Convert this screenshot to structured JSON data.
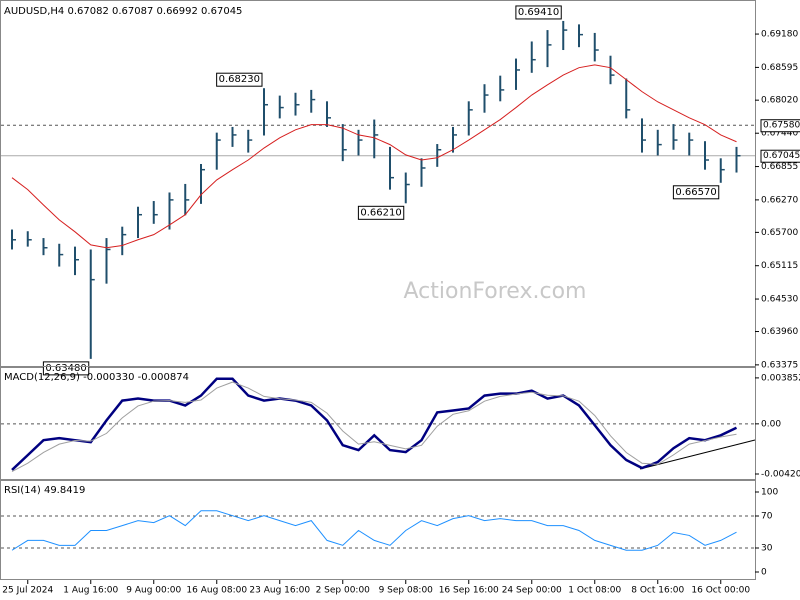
{
  "chart_data": [
    {
      "type": "ohlc",
      "title": "AUDUSD,H4 0.67082 0.67087 0.66992 0.67045",
      "watermark": "ActionForex.com",
      "color": "#1f4e6b",
      "high": [
        0.6575,
        0.6572,
        0.656,
        0.655,
        0.6545,
        0.654,
        0.656,
        0.658,
        0.6615,
        0.6625,
        0.664,
        0.6655,
        0.669,
        0.6745,
        0.6755,
        0.675,
        0.6823,
        0.681,
        0.6815,
        0.682,
        0.68,
        0.676,
        0.675,
        0.6768,
        0.672,
        0.6675,
        0.67,
        0.6725,
        0.6755,
        0.68,
        0.683,
        0.6845,
        0.6875,
        0.6905,
        0.6925,
        0.6941,
        0.6935,
        0.692,
        0.688,
        0.684,
        0.677,
        0.675,
        0.676,
        0.6745,
        0.673,
        0.67,
        0.672
      ],
      "low": [
        0.654,
        0.6545,
        0.653,
        0.651,
        0.6495,
        0.6348,
        0.648,
        0.653,
        0.656,
        0.6585,
        0.6575,
        0.66,
        0.662,
        0.668,
        0.672,
        0.671,
        0.674,
        0.677,
        0.6775,
        0.678,
        0.6755,
        0.6695,
        0.6705,
        0.67,
        0.6645,
        0.6621,
        0.665,
        0.6685,
        0.671,
        0.674,
        0.678,
        0.68,
        0.682,
        0.685,
        0.686,
        0.689,
        0.6895,
        0.687,
        0.683,
        0.677,
        0.671,
        0.6705,
        0.6715,
        0.6705,
        0.668,
        0.6657,
        0.6675
      ],
      "close": [
        0.6557,
        0.6557,
        0.6543,
        0.6531,
        0.6522,
        0.6487,
        0.654,
        0.6566,
        0.6601,
        0.6601,
        0.6627,
        0.6627,
        0.668,
        0.6732,
        0.6741,
        0.6732,
        0.6794,
        0.6789,
        0.6794,
        0.6803,
        0.6771,
        0.6715,
        0.6732,
        0.6741,
        0.6666,
        0.6654,
        0.6683,
        0.6715,
        0.6741,
        0.6785,
        0.6811,
        0.682,
        0.6855,
        0.6873,
        0.6899,
        0.6925,
        0.6917,
        0.689,
        0.6846,
        0.6785,
        0.6732,
        0.6724,
        0.6732,
        0.6732,
        0.6697,
        0.668,
        0.67045
      ],
      "series": [
        {
          "color": "#d62020",
          "line_width": 1,
          "values": [
            0.6666,
            0.6645,
            0.6618,
            0.6592,
            0.6571,
            0.6548,
            0.6543,
            0.6547,
            0.6557,
            0.6566,
            0.6583,
            0.6601,
            0.6636,
            0.6662,
            0.668,
            0.6697,
            0.6718,
            0.6736,
            0.675,
            0.6759,
            0.6759,
            0.6753,
            0.6741,
            0.6736,
            0.6724,
            0.6706,
            0.6697,
            0.6701,
            0.6715,
            0.6732,
            0.675,
            0.6768,
            0.6789,
            0.6811,
            0.6829,
            0.6846,
            0.6859,
            0.6864,
            0.6859,
            0.6838,
            0.6817,
            0.6799,
            0.6785,
            0.6771,
            0.6759,
            0.6741,
            0.6729
          ]
        }
      ],
      "annotations": [
        {
          "text": "0.63480",
          "value": 0.6348
        },
        {
          "text": "0.68230",
          "value": 0.6823
        },
        {
          "text": "0.66210",
          "value": 0.6621
        },
        {
          "text": "0.69410",
          "value": 0.6941
        },
        {
          "text": "0.66570",
          "value": 0.6657
        }
      ],
      "levels": [
        {
          "value": 0.6758,
          "label": "0.67580",
          "dashed": true
        },
        {
          "value": 0.67045,
          "label": "0.67045",
          "dashed": false
        }
      ],
      "ylim": [
        0.6332,
        0.6969
      ],
      "yticks": [
        {
          "value": 0.6918,
          "label": "0.69180"
        },
        0.68595,
        {
          "value": 0.6802,
          "label": "0.68020"
        },
        {
          "value": 0.6744,
          "label": "0.67440"
        },
        0.66855,
        {
          "value": 0.6627,
          "label": "0.66270"
        },
        {
          "value": 0.657,
          "label": "0.65700"
        },
        0.65115,
        {
          "value": 0.6453,
          "label": "0.64530"
        },
        {
          "value": 0.6396,
          "label": "0.63960"
        },
        0.63375
      ]
    },
    {
      "type": "line",
      "title": "MACD(12,26,9) -0.000330 -0.000874",
      "series": [
        {
          "color": "#000080",
          "line_width": 2.5,
          "values": [
            -0.00386,
            -0.00262,
            -0.00137,
            -0.0012,
            -0.00137,
            -0.00154,
            0.00029,
            0.00195,
            0.00212,
            0.00195,
            0.00195,
            0.00154,
            0.00237,
            0.00378,
            0.00378,
            0.00237,
            0.00195,
            0.00212,
            0.00195,
            0.00154,
            0.00029,
            -0.00179,
            -0.0022,
            -0.00096,
            -0.0022,
            -0.00237,
            -0.00137,
            0.00096,
            0.00112,
            0.00129,
            0.00237,
            0.00253,
            0.00253,
            0.00278,
            0.00212,
            0.00237,
            0.00154,
            -0.00012,
            -0.00179,
            -0.00303,
            -0.0037,
            -0.0032,
            -0.00204,
            -0.0012,
            -0.00137,
            -0.00096,
            -0.00033
          ]
        },
        {
          "color": "#a0a0a0",
          "line_width": 1,
          "values": [
            -0.004,
            -0.0033,
            -0.0024,
            -0.0017,
            -0.0014,
            -0.00145,
            -0.0008,
            0.0005,
            0.0015,
            0.0019,
            0.00195,
            0.0018,
            0.002,
            0.003,
            0.0035,
            0.003,
            0.0023,
            0.0021,
            0.002,
            0.0018,
            0.0009,
            -0.0006,
            -0.0017,
            -0.0015,
            -0.0018,
            -0.0021,
            -0.0018,
            -0.0002,
            0.0008,
            0.0011,
            0.0019,
            0.0023,
            0.0025,
            0.00265,
            0.0024,
            0.00235,
            0.0019,
            0.0007,
            -0.001,
            -0.0024,
            -0.0033,
            -0.0034,
            -0.0026,
            -0.0017,
            -0.0014,
            -0.0011,
            -0.00087
          ]
        }
      ],
      "levels": [
        {
          "value": 0,
          "dashed": true
        }
      ],
      "ylim": [
        -0.00479,
        0.00443
      ],
      "yticks": [
        0.003852,
        {
          "value": 0,
          "label": "0.00"
        },
        -0.004204
      ]
    },
    {
      "type": "line",
      "title": "RSI(14) 49.8419",
      "series": [
        {
          "color": "#1e90ff",
          "line_width": 1,
          "values": [
            27.2,
            39.5,
            39.5,
            33.3,
            33.3,
            51.9,
            51.9,
            58,
            64.2,
            61.7,
            70.4,
            58,
            76.5,
            76.5,
            70.4,
            64.2,
            70.4,
            64.2,
            58,
            64.2,
            39.5,
            33.3,
            51.9,
            39.5,
            33.3,
            51.9,
            64.2,
            58,
            66.7,
            70.4,
            64.2,
            66.7,
            64.2,
            64.2,
            58,
            58,
            51.9,
            39.5,
            33.3,
            27.2,
            27.2,
            33.3,
            49.4,
            45.7,
            33.3,
            39.5,
            49.8
          ]
        }
      ],
      "levels": [
        {
          "value": 70,
          "dashed": true
        },
        {
          "value": 30,
          "dashed": true
        }
      ],
      "ylim": [
        -10,
        110
      ],
      "yticks": [
        100,
        70,
        30,
        0
      ],
      "categories": [
        null,
        "25 Jul 2024",
        null,
        null,
        null,
        "1 Aug 16:00",
        null,
        null,
        null,
        "9 Aug 00:00",
        null,
        null,
        null,
        "16 Aug 08:00",
        null,
        null,
        null,
        "23 Aug 16:00",
        null,
        null,
        null,
        "2 Sep 00:00",
        null,
        null,
        null,
        "9 Sep 08:00",
        null,
        null,
        null,
        "16 Sep 16:00",
        null,
        null,
        null,
        "24 Sep 00:00",
        null,
        null,
        null,
        "1 Oct 08:00",
        null,
        null,
        null,
        "8 Oct 16:00",
        null,
        null,
        null,
        "16 Oct 00:00",
        null
      ]
    }
  ]
}
